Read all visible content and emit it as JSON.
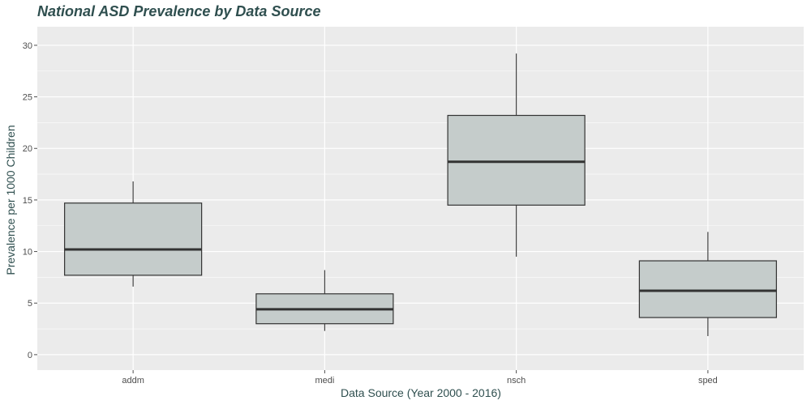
{
  "chart_data": {
    "type": "boxplot",
    "title": "National ASD Prevalence by Data Source",
    "xlabel": "Data Source (Year 2000 - 2016)",
    "ylabel": "Prevalence per 1000 Children",
    "categories": [
      "addm",
      "medi",
      "nsch",
      "sped"
    ],
    "boxes": [
      {
        "category": "addm",
        "min": 6.6,
        "q1": 7.7,
        "median": 10.2,
        "q3": 14.7,
        "max": 16.8
      },
      {
        "category": "medi",
        "min": 2.3,
        "q1": 3.0,
        "median": 4.4,
        "q3": 5.9,
        "max": 8.2
      },
      {
        "category": "nsch",
        "min": 9.5,
        "q1": 14.5,
        "median": 18.7,
        "q3": 23.2,
        "max": 29.2
      },
      {
        "category": "sped",
        "min": 1.8,
        "q1": 3.6,
        "median": 6.2,
        "q3": 9.1,
        "max": 11.9
      }
    ],
    "yticks": [
      0,
      5,
      10,
      15,
      20,
      25,
      30
    ],
    "ylim": [
      -1.5,
      31.8
    ],
    "grid": true,
    "legend": "none",
    "colors": {
      "panel": "#EBEBEB",
      "grid": "#FFFFFF",
      "box_fill": "#C5CCCB",
      "box_stroke": "#333333",
      "title": "#2F4F4F"
    }
  }
}
